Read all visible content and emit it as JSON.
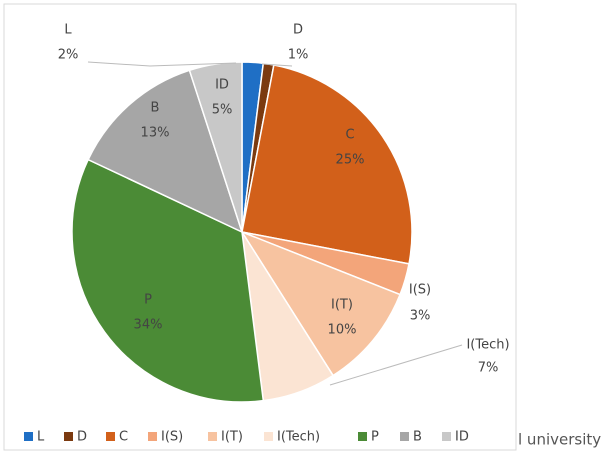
{
  "chart_data": {
    "type": "pie",
    "categories": [
      "L",
      "D",
      "C",
      "I(S)",
      "I(T)",
      "I(Tech)",
      "P",
      "B",
      "ID"
    ],
    "values": [
      2,
      1,
      25,
      3,
      10,
      7,
      34,
      13,
      5
    ],
    "value_labels": [
      "2%",
      "1%",
      "25%",
      "3%",
      "10%",
      "7%",
      "34%",
      "13%",
      "5%"
    ],
    "colors": [
      "#1f6fc5",
      "#7b3a10",
      "#d2601a",
      "#f3a57a",
      "#f7c3a0",
      "#fbe4d3",
      "#4b8b36",
      "#a6a6a6",
      "#c8c8c8"
    ],
    "legend": "bottom"
  },
  "caption_fragment": "l university"
}
